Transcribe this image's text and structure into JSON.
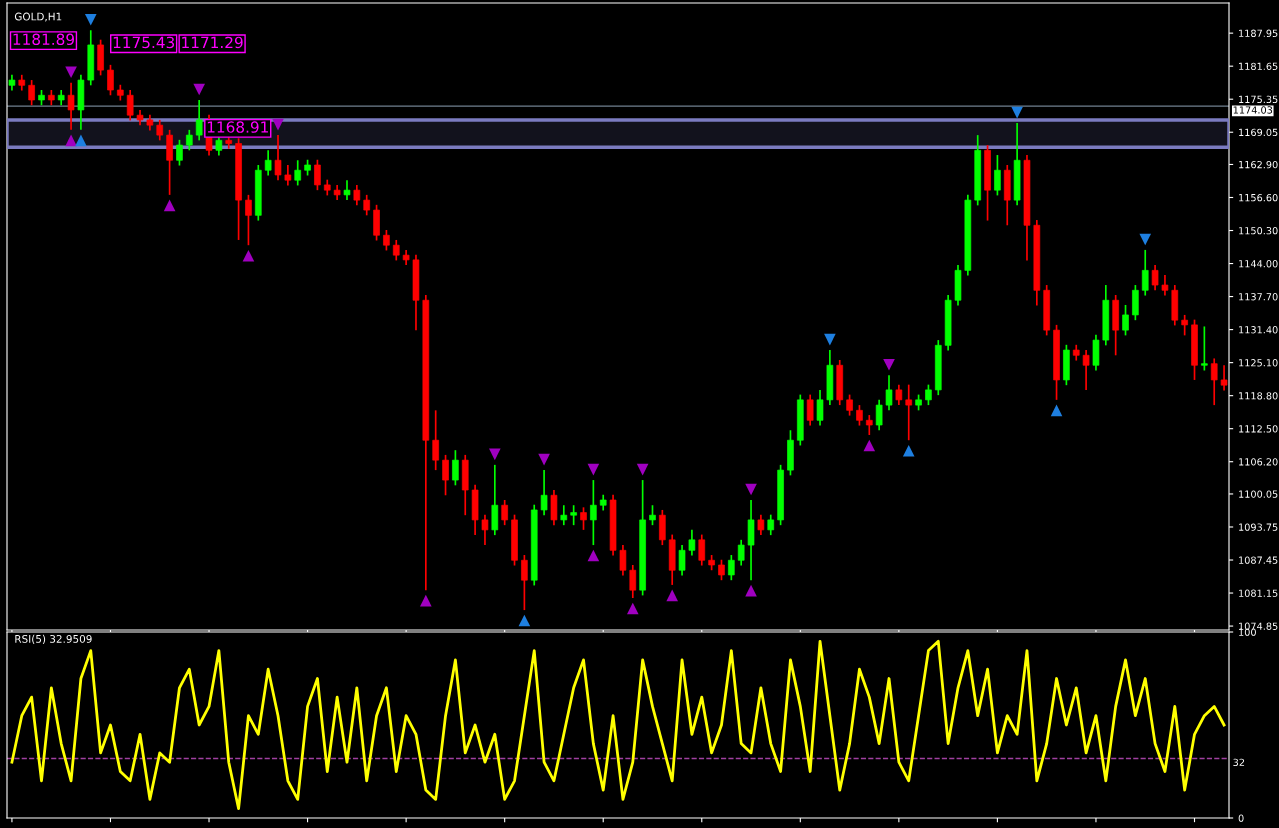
{
  "chart_data": [
    {
      "type": "candlestick",
      "title": "GOLD,H1",
      "tick_labels": "y",
      "grid": false,
      "legend": false,
      "categories": [
        null,
        null,
        null,
        null,
        null,
        null,
        null,
        null,
        null,
        null,
        null,
        null,
        null,
        null,
        null,
        null,
        null,
        null,
        null,
        null,
        null,
        null,
        null,
        null,
        null,
        null,
        null,
        null,
        null,
        null,
        null,
        null,
        null,
        null,
        null,
        null,
        null,
        null,
        null,
        null,
        null,
        null,
        null,
        null,
        null,
        null,
        null,
        null,
        null,
        null,
        null,
        null,
        null,
        null,
        null,
        null,
        null,
        null,
        null,
        null,
        null,
        null,
        null,
        null,
        null,
        null,
        null,
        null,
        null,
        null,
        null,
        null,
        null,
        null,
        null,
        null,
        null,
        null,
        null,
        null,
        null,
        null,
        null,
        null,
        null,
        null,
        null,
        null,
        null,
        null,
        null,
        null,
        null,
        null,
        null,
        null,
        null,
        null,
        null,
        null,
        null,
        null,
        null,
        null,
        null,
        null,
        null,
        null,
        null,
        null,
        null,
        null,
        null,
        null,
        null,
        null,
        null,
        null,
        null,
        null,
        null,
        null,
        null,
        null
      ],
      "colors": [
        "#00ff00",
        "#ff0000",
        "#ff0000",
        "#00ff00",
        "#ff0000",
        "#00ff00",
        "#ff0000",
        "#00ff00",
        "#00ff00",
        "#ff0000",
        "#ff0000",
        "#ff0000",
        "#ff0000",
        "#ff0000",
        "#ff0000",
        "#ff0000",
        "#ff0000",
        "#00ff00",
        "#00ff00",
        "#00ff00",
        "#ff0000",
        "#00ff00",
        "#ff0000",
        "#ff0000",
        "#ff0000",
        "#00ff00",
        "#00ff00",
        "#ff0000",
        "#ff0000",
        "#00ff00",
        "#00ff00",
        "#ff0000",
        "#ff0000",
        "#ff0000",
        "#00ff00",
        "#ff0000",
        "#ff0000",
        "#ff0000",
        "#ff0000",
        "#ff0000",
        "#ff0000",
        "#ff0000",
        "#ff0000",
        "#ff0000",
        "#ff0000",
        "#00ff00",
        "#ff0000",
        "#ff0000",
        "#ff0000",
        "#00ff00",
        "#ff0000",
        "#ff0000",
        "#ff0000",
        "#00ff00",
        "#00ff00",
        "#ff0000",
        "#00ff00",
        "#00ff00",
        "#ff0000",
        "#00ff00",
        "#00ff00",
        "#ff0000",
        "#ff0000",
        "#ff0000",
        "#00ff00",
        "#00ff00",
        "#ff0000",
        "#ff0000",
        "#00ff00",
        "#00ff00",
        "#ff0000",
        "#ff0000",
        "#ff0000",
        "#00ff00",
        "#00ff00",
        "#00ff00",
        "#ff0000",
        "#00ff00",
        "#00ff00",
        "#00ff00",
        "#00ff00",
        "#ff0000",
        "#00ff00",
        "#00ff00",
        "#ff0000",
        "#ff0000",
        "#ff0000",
        "#ff0000",
        "#00ff00",
        "#00ff00",
        "#ff0000",
        "#ff0000",
        "#00ff00",
        "#00ff00",
        "#00ff00",
        "#00ff00",
        "#00ff00",
        "#00ff00",
        "#00ff00",
        "#ff0000",
        "#00ff00",
        "#ff0000",
        "#00ff00",
        "#ff0000",
        "#ff0000",
        "#ff0000",
        "#ff0000",
        "#00ff00",
        "#ff0000",
        "#ff0000",
        "#00ff00",
        "#00ff00",
        "#ff0000",
        "#00ff00",
        "#00ff00",
        "#00ff00",
        "#ff0000",
        "#ff0000",
        "#ff0000",
        "#ff0000",
        "#ff0000",
        "#00ff00",
        "#ff0000",
        "#ff0000"
      ],
      "ohlc": [
        [
          1178.0,
          1180.0,
          1177.0,
          1179.0
        ],
        [
          1179.0,
          1180.0,
          1177.0,
          1178.0
        ],
        [
          1178.0,
          1179.0,
          1174.2,
          1175.2
        ],
        [
          1175.2,
          1177.1,
          1174.2,
          1176.1
        ],
        [
          1176.1,
          1177.1,
          1174.2,
          1175.2
        ],
        [
          1175.2,
          1177.1,
          1174.2,
          1176.1
        ],
        [
          1176.1,
          1178.5,
          1169.5,
          1173.3
        ],
        [
          1173.3,
          1180.0,
          1169.5,
          1179.0
        ],
        [
          1179.0,
          1188.5,
          1178.0,
          1185.7
        ],
        [
          1185.7,
          1186.7,
          1179.9,
          1180.9
        ],
        [
          1180.9,
          1181.9,
          1176.1,
          1177.1
        ],
        [
          1177.1,
          1178.1,
          1175.1,
          1176.1
        ],
        [
          1176.1,
          1177.1,
          1171.3,
          1172.3
        ],
        [
          1172.3,
          1173.3,
          1170.4,
          1171.4
        ],
        [
          1171.4,
          1172.4,
          1169.4,
          1170.4
        ],
        [
          1170.4,
          1171.4,
          1167.5,
          1168.5
        ],
        [
          1168.5,
          1169.5,
          1157.1,
          1163.7
        ],
        [
          1163.7,
          1167.6,
          1162.7,
          1166.6
        ],
        [
          1166.6,
          1169.5,
          1165.6,
          1168.5
        ],
        [
          1168.5,
          1175.2,
          1167.5,
          1171.4
        ],
        [
          1171.4,
          1172.4,
          1164.6,
          1165.6
        ],
        [
          1165.6,
          1168.5,
          1164.6,
          1167.5
        ],
        [
          1167.5,
          1168.5,
          1165.9,
          1166.9
        ],
        [
          1166.9,
          1167.9,
          1148.5,
          1156.1
        ],
        [
          1156.1,
          1157.1,
          1147.5,
          1153.2
        ],
        [
          1153.2,
          1162.8,
          1152.2,
          1161.8
        ],
        [
          1161.8,
          1165.6,
          1160.8,
          1163.7
        ],
        [
          1163.7,
          1168.5,
          1159.9,
          1160.9
        ],
        [
          1160.9,
          1162.8,
          1158.9,
          1159.9
        ],
        [
          1159.9,
          1163.7,
          1158.9,
          1161.8
        ],
        [
          1161.8,
          1163.8,
          1160.8,
          1162.8
        ],
        [
          1162.8,
          1163.8,
          1158.0,
          1159.0
        ],
        [
          1159.0,
          1160.0,
          1157.0,
          1158.0
        ],
        [
          1158.0,
          1159.0,
          1156.1,
          1157.1
        ],
        [
          1157.1,
          1159.9,
          1156.1,
          1158.0
        ],
        [
          1158.0,
          1159.0,
          1155.1,
          1156.1
        ],
        [
          1156.1,
          1157.1,
          1153.2,
          1154.2
        ],
        [
          1154.2,
          1155.2,
          1148.4,
          1149.4
        ],
        [
          1149.4,
          1150.4,
          1146.5,
          1147.5
        ],
        [
          1147.5,
          1148.5,
          1144.6,
          1145.6
        ],
        [
          1145.6,
          1146.6,
          1143.7,
          1144.7
        ],
        [
          1144.7,
          1145.7,
          1131.3,
          1137.0
        ],
        [
          1137.0,
          1138.0,
          1081.7,
          1110.3
        ],
        [
          1110.3,
          1116.0,
          1104.6,
          1106.5
        ],
        [
          1106.5,
          1107.5,
          1099.8,
          1102.7
        ],
        [
          1102.7,
          1108.4,
          1101.7,
          1106.5
        ],
        [
          1106.5,
          1107.5,
          1096.0,
          1100.8
        ],
        [
          1100.8,
          1101.8,
          1092.2,
          1095.1
        ],
        [
          1095.1,
          1096.1,
          1090.3,
          1093.2
        ],
        [
          1093.2,
          1105.6,
          1092.2,
          1097.9
        ],
        [
          1097.9,
          1098.9,
          1094.1,
          1095.1
        ],
        [
          1095.1,
          1096.1,
          1086.4,
          1087.4
        ],
        [
          1087.4,
          1088.4,
          1077.9,
          1083.6
        ],
        [
          1083.6,
          1098.0,
          1082.6,
          1097.0
        ],
        [
          1097.0,
          1104.6,
          1096.0,
          1099.8
        ],
        [
          1099.8,
          1100.8,
          1094.1,
          1095.1
        ],
        [
          1095.1,
          1097.9,
          1094.1,
          1096.0
        ],
        [
          1096.0,
          1097.9,
          1094.1,
          1096.5
        ],
        [
          1096.5,
          1097.5,
          1093.2,
          1095.1
        ],
        [
          1095.1,
          1102.7,
          1090.3,
          1097.9
        ],
        [
          1097.9,
          1099.9,
          1096.9,
          1098.9
        ],
        [
          1098.9,
          1099.9,
          1088.3,
          1089.3
        ],
        [
          1089.3,
          1090.3,
          1084.5,
          1085.5
        ],
        [
          1085.5,
          1086.5,
          1080.2,
          1081.7
        ],
        [
          1081.7,
          1102.7,
          1080.7,
          1095.1
        ],
        [
          1095.1,
          1097.9,
          1094.1,
          1096.0
        ],
        [
          1096.0,
          1097.0,
          1090.3,
          1091.3
        ],
        [
          1091.3,
          1092.3,
          1082.7,
          1085.5
        ],
        [
          1085.5,
          1090.3,
          1084.5,
          1089.3
        ],
        [
          1089.3,
          1093.2,
          1088.3,
          1091.3
        ],
        [
          1091.3,
          1092.3,
          1086.4,
          1087.4
        ],
        [
          1087.4,
          1088.4,
          1085.5,
          1086.5
        ],
        [
          1086.5,
          1087.5,
          1083.6,
          1084.6
        ],
        [
          1084.6,
          1088.4,
          1083.6,
          1087.4
        ],
        [
          1087.4,
          1091.3,
          1086.4,
          1090.3
        ],
        [
          1090.3,
          1098.9,
          1083.6,
          1095.1
        ],
        [
          1095.1,
          1096.1,
          1092.2,
          1093.2
        ],
        [
          1093.2,
          1096.1,
          1092.2,
          1095.1
        ],
        [
          1095.1,
          1105.6,
          1094.1,
          1104.6
        ],
        [
          1104.6,
          1112.2,
          1103.6,
          1110.3
        ],
        [
          1110.3,
          1119.0,
          1109.3,
          1118.0
        ],
        [
          1118.0,
          1119.0,
          1113.1,
          1114.1
        ],
        [
          1114.1,
          1119.9,
          1113.1,
          1118.0
        ],
        [
          1118.0,
          1127.5,
          1117.0,
          1124.6
        ],
        [
          1124.6,
          1125.6,
          1117.0,
          1118.0
        ],
        [
          1118.0,
          1119.0,
          1115.0,
          1116.0
        ],
        [
          1116.0,
          1117.0,
          1113.1,
          1114.1
        ],
        [
          1114.1,
          1115.1,
          1111.3,
          1113.2
        ],
        [
          1113.2,
          1118.0,
          1112.2,
          1117.0
        ],
        [
          1117.0,
          1122.7,
          1116.0,
          1119.9
        ],
        [
          1119.9,
          1120.9,
          1117.0,
          1118.0
        ],
        [
          1118.0,
          1120.9,
          1110.3,
          1117.0
        ],
        [
          1117.0,
          1119.0,
          1116.0,
          1118.0
        ],
        [
          1118.0,
          1120.9,
          1117.0,
          1119.9
        ],
        [
          1119.9,
          1129.4,
          1118.9,
          1128.4
        ],
        [
          1128.4,
          1138.0,
          1127.4,
          1137.0
        ],
        [
          1137.0,
          1143.7,
          1136.0,
          1142.7
        ],
        [
          1142.7,
          1157.1,
          1141.7,
          1156.1
        ],
        [
          1156.1,
          1168.5,
          1155.1,
          1165.6
        ],
        [
          1165.6,
          1166.6,
          1152.2,
          1158.0
        ],
        [
          1158.0,
          1164.7,
          1157.0,
          1161.8
        ],
        [
          1161.8,
          1162.8,
          1151.3,
          1156.1
        ],
        [
          1156.1,
          1170.8,
          1155.1,
          1163.7
        ],
        [
          1163.7,
          1164.7,
          1144.6,
          1151.3
        ],
        [
          1151.3,
          1152.3,
          1136.0,
          1138.9
        ],
        [
          1138.9,
          1139.9,
          1130.3,
          1131.3
        ],
        [
          1131.3,
          1132.3,
          1118.0,
          1121.8
        ],
        [
          1121.8,
          1128.5,
          1120.8,
          1127.5
        ],
        [
          1127.5,
          1128.5,
          1125.5,
          1126.5
        ],
        [
          1126.5,
          1127.5,
          1119.9,
          1124.6
        ],
        [
          1124.6,
          1130.4,
          1123.6,
          1129.4
        ],
        [
          1129.4,
          1139.9,
          1128.4,
          1137.0
        ],
        [
          1137.0,
          1138.0,
          1126.5,
          1131.3
        ],
        [
          1131.3,
          1136.1,
          1130.3,
          1134.2
        ],
        [
          1134.2,
          1139.9,
          1133.2,
          1138.9
        ],
        [
          1138.9,
          1146.6,
          1137.9,
          1142.7
        ],
        [
          1142.7,
          1143.7,
          1138.9,
          1139.9
        ],
        [
          1139.9,
          1141.8,
          1137.9,
          1138.9
        ],
        [
          1138.9,
          1139.9,
          1132.2,
          1133.2
        ],
        [
          1133.2,
          1134.2,
          1130.3,
          1132.3
        ],
        [
          1132.3,
          1133.3,
          1121.8,
          1124.6
        ],
        [
          1124.6,
          1132.0,
          1123.6,
          1124.9
        ],
        [
          1124.9,
          1125.9,
          1117.0,
          1121.8
        ],
        [
          1121.8,
          1124.6,
          1119.8,
          1120.8
        ]
      ],
      "series": [
        {
          "type": "scatter",
          "marker": "triangle",
          "color": "#a000c0",
          "values": [
            null,
            null,
            null,
            null,
            null,
            null,
            1180.5,
            null,
            null,
            null,
            null,
            null,
            null,
            null,
            null,
            null,
            null,
            null,
            null,
            1177.2,
            null,
            null,
            null,
            null,
            null,
            null,
            null,
            1170.5,
            null,
            null,
            null,
            null,
            null,
            null,
            null,
            null,
            null,
            null,
            null,
            null,
            null,
            null,
            null,
            null,
            null,
            null,
            null,
            null,
            null,
            1107.6,
            null,
            null,
            null,
            null,
            1106.6,
            null,
            null,
            null,
            null,
            1104.7,
            null,
            null,
            null,
            null,
            1104.7,
            null,
            null,
            null,
            null,
            null,
            null,
            null,
            null,
            null,
            null,
            1100.9,
            null,
            null,
            null,
            null,
            null,
            null,
            null,
            null,
            null,
            null,
            null,
            null,
            null,
            1124.7,
            null,
            null,
            null,
            null,
            null,
            null,
            null,
            null,
            null,
            null,
            null,
            null,
            null,
            null,
            null,
            null,
            null,
            null,
            null,
            null,
            null,
            null,
            null,
            null,
            null,
            null,
            null,
            null,
            null,
            null,
            null,
            null,
            null,
            null
          ]
        },
        {
          "type": "scatter",
          "marker": "triangle",
          "color": "#1e7fe0",
          "values": [
            null,
            null,
            null,
            null,
            null,
            null,
            null,
            null,
            1190.5,
            null,
            null,
            null,
            null,
            null,
            null,
            null,
            null,
            null,
            null,
            null,
            null,
            null,
            null,
            null,
            null,
            null,
            null,
            null,
            null,
            null,
            null,
            null,
            null,
            null,
            null,
            null,
            null,
            null,
            null,
            null,
            null,
            null,
            null,
            null,
            null,
            null,
            null,
            null,
            null,
            null,
            null,
            null,
            null,
            null,
            null,
            null,
            null,
            null,
            null,
            null,
            null,
            null,
            null,
            null,
            null,
            null,
            null,
            null,
            null,
            null,
            null,
            null,
            null,
            null,
            null,
            null,
            null,
            null,
            null,
            null,
            null,
            null,
            null,
            1129.5,
            null,
            null,
            null,
            null,
            null,
            null,
            null,
            null,
            null,
            null,
            null,
            null,
            null,
            null,
            null,
            null,
            null,
            null,
            1172.8,
            null,
            null,
            null,
            null,
            null,
            null,
            null,
            null,
            null,
            null,
            null,
            null,
            1148.6,
            null,
            null,
            null,
            null,
            null,
            null,
            null,
            null
          ]
        },
        {
          "type": "scatter",
          "marker": "triangle",
          "color": "#a000c0",
          "values": [
            null,
            null,
            null,
            null,
            null,
            null,
            1167.5,
            null,
            null,
            null,
            null,
            null,
            null,
            null,
            null,
            null,
            1155.1,
            null,
            null,
            null,
            null,
            null,
            null,
            null,
            1145.5,
            null,
            null,
            null,
            null,
            null,
            null,
            null,
            null,
            null,
            null,
            null,
            null,
            null,
            null,
            null,
            null,
            null,
            1079.7,
            null,
            null,
            null,
            null,
            null,
            null,
            null,
            null,
            null,
            null,
            null,
            null,
            null,
            null,
            null,
            null,
            1088.3,
            null,
            null,
            null,
            1078.2,
            null,
            null,
            null,
            1080.7,
            null,
            null,
            null,
            null,
            null,
            null,
            null,
            1081.6,
            null,
            null,
            null,
            null,
            null,
            null,
            null,
            null,
            null,
            null,
            null,
            1109.3,
            null,
            null,
            null,
            null,
            null,
            null,
            null,
            null,
            null,
            null,
            null,
            null,
            null,
            null,
            null,
            null,
            null,
            null,
            null,
            null,
            null,
            null,
            null,
            null,
            null,
            null,
            null,
            null,
            null,
            null,
            null,
            null,
            null,
            null,
            null,
            null
          ]
        },
        {
          "type": "scatter",
          "marker": "triangle",
          "color": "#1e7fe0",
          "values": [
            null,
            null,
            null,
            null,
            null,
            null,
            null,
            1167.5,
            null,
            null,
            null,
            null,
            null,
            null,
            null,
            null,
            null,
            null,
            null,
            null,
            null,
            null,
            null,
            null,
            null,
            null,
            null,
            null,
            null,
            null,
            null,
            null,
            null,
            null,
            null,
            null,
            null,
            null,
            null,
            null,
            null,
            null,
            null,
            null,
            null,
            null,
            null,
            null,
            null,
            null,
            null,
            null,
            1075.9,
            null,
            null,
            null,
            null,
            null,
            null,
            null,
            null,
            null,
            null,
            null,
            null,
            null,
            null,
            null,
            null,
            null,
            null,
            null,
            null,
            null,
            null,
            null,
            null,
            null,
            null,
            null,
            null,
            null,
            null,
            null,
            null,
            null,
            null,
            null,
            null,
            null,
            null,
            1108.3,
            null,
            null,
            null,
            null,
            null,
            null,
            null,
            null,
            null,
            null,
            null,
            null,
            null,
            null,
            1116.0,
            null,
            null,
            null,
            null,
            null,
            null,
            null,
            null,
            null,
            null,
            null,
            null,
            null,
            null,
            null,
            null,
            null
          ]
        }
      ],
      "ylim": [
        1074.1,
        1193.7
      ],
      "yticks": [
        {
          "value": 1187.95,
          "label": "1187.95"
        },
        {
          "value": 1181.65,
          "label": "1181.65"
        },
        {
          "value": 1175.35,
          "label": "1175.35"
        },
        {
          "value": 1169.05,
          "label": "1169.05"
        },
        {
          "value": 1162.9,
          "label": "1162.90"
        },
        {
          "value": 1156.6,
          "label": "1156.60"
        },
        {
          "value": 1150.3,
          "label": "1150.30"
        },
        {
          "value": 1144.0,
          "label": "1144.00"
        },
        {
          "value": 1137.7,
          "label": "1137.70"
        },
        {
          "value": 1131.4,
          "label": "1131.40"
        },
        {
          "value": 1125.1,
          "label": "1125.10"
        },
        {
          "value": 1118.8,
          "label": "1118.80"
        },
        {
          "value": 1112.5,
          "label": "1112.50"
        },
        {
          "value": 1106.2,
          "label": "1106.20"
        },
        {
          "value": 1100.05,
          "label": "1100.05"
        },
        {
          "value": 1093.75,
          "label": "1093.75"
        },
        {
          "value": 1087.45,
          "label": "1087.45"
        },
        {
          "value": 1081.15,
          "label": "1081.15"
        },
        {
          "value": 1074.85,
          "label": "1074.85"
        }
      ],
      "ref_lines": [
        {
          "axis": "y",
          "value": 1174.03,
          "label": "1174.03",
          "color": "#708090",
          "line_style": "solid"
        }
      ],
      "bands": [
        {
          "axis": "y",
          "from": 1166.2,
          "to": 1171.4,
          "color": "#7b7bc0"
        }
      ],
      "annotations": [
        "1181.89",
        "1175.43",
        "1171.29",
        "1168.91"
      ]
    },
    {
      "type": "line",
      "title": "RSI(5) 32.9509",
      "tick_labels": "y",
      "grid": false,
      "legend": false,
      "marker": "none",
      "line_style": "solid",
      "categories": [
        null,
        null,
        null,
        null,
        null,
        null,
        null,
        null,
        null,
        null,
        null,
        null,
        null,
        null,
        null,
        null,
        null,
        null,
        null,
        null,
        null,
        null,
        null,
        null,
        null,
        null,
        null,
        null,
        null,
        null,
        null,
        null,
        null,
        null,
        null,
        null,
        null,
        null,
        null,
        null,
        null,
        null,
        null,
        null,
        null,
        null,
        null,
        null,
        null,
        null,
        null,
        null,
        null,
        null,
        null,
        null,
        null,
        null,
        null,
        null,
        null,
        null,
        null,
        null,
        null,
        null,
        null,
        null,
        null,
        null,
        null,
        null,
        null,
        null,
        null,
        null,
        null,
        null,
        null,
        null,
        null,
        null,
        null,
        null,
        null,
        null,
        null,
        null,
        null,
        null,
        null,
        null,
        null,
        null,
        null,
        null,
        null,
        null,
        null,
        null,
        null,
        null,
        null,
        null,
        null,
        null,
        null,
        null,
        null,
        null,
        null,
        null,
        null,
        null,
        null,
        null,
        null,
        null,
        null,
        null,
        null,
        null,
        null,
        null
      ],
      "series": [
        {
          "color": "#ffff00",
          "values": [
            30,
            55,
            65,
            20,
            70,
            40,
            20,
            75,
            90,
            35,
            50,
            25,
            20,
            45,
            10,
            35,
            30,
            70,
            80,
            50,
            60,
            90,
            30,
            5,
            55,
            45,
            80,
            55,
            20,
            10,
            60,
            75,
            25,
            65,
            30,
            70,
            20,
            55,
            70,
            25,
            55,
            45,
            15,
            10,
            55,
            85,
            35,
            50,
            30,
            45,
            10,
            20,
            55,
            90,
            30,
            20,
            45,
            70,
            85,
            40,
            15,
            55,
            10,
            30,
            85,
            60,
            40,
            20,
            85,
            45,
            65,
            35,
            50,
            90,
            40,
            35,
            70,
            40,
            25,
            85,
            60,
            25,
            95,
            55,
            15,
            40,
            80,
            65,
            40,
            75,
            30,
            20,
            55,
            90,
            95,
            40,
            70,
            90,
            55,
            80,
            35,
            55,
            45,
            90,
            20,
            40,
            75,
            50,
            70,
            35,
            55,
            20,
            60,
            85,
            55,
            75,
            40,
            25,
            60,
            15,
            45,
            55,
            60,
            50
          ]
        }
      ],
      "ylim": [
        0,
        100
      ],
      "yticks": [
        0,
        100
      ],
      "ref_lines": [
        {
          "axis": "y",
          "value": 32,
          "label": "32",
          "color": "#a040a0",
          "line_style": "dashed"
        }
      ]
    }
  ]
}
